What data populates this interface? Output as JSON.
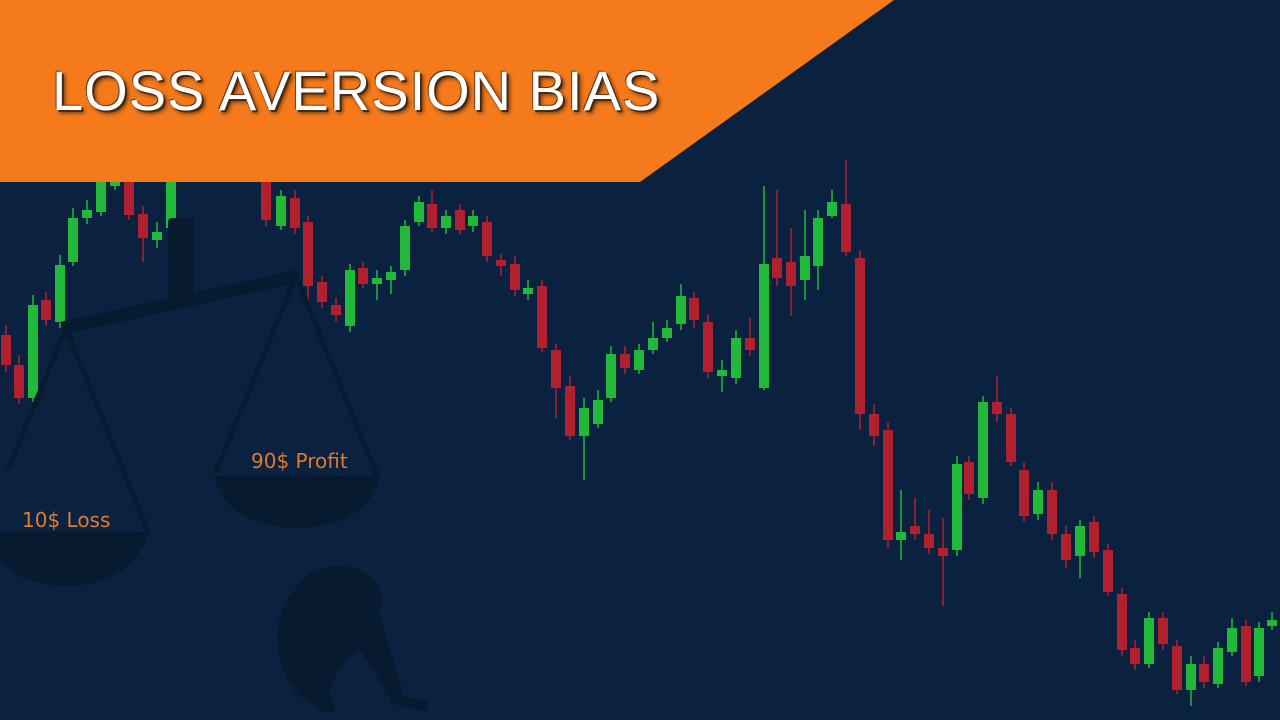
{
  "title": "LOSS AVERSION BIAS",
  "scale": {
    "left_pan_label": "10$ Loss",
    "right_pan_label": "90$ Profit"
  },
  "colors": {
    "background": "#0a2240",
    "banner": "#f57a1c",
    "bullish_candle": "#22b83a",
    "bearish_candle": "#b0202e",
    "pan_label": "#e07a2e",
    "silhouette": "#071a30"
  },
  "icons": [
    "balance-scale-icon",
    "sitting-person-silhouette-icon",
    "candlestick-chart-icon"
  ]
}
